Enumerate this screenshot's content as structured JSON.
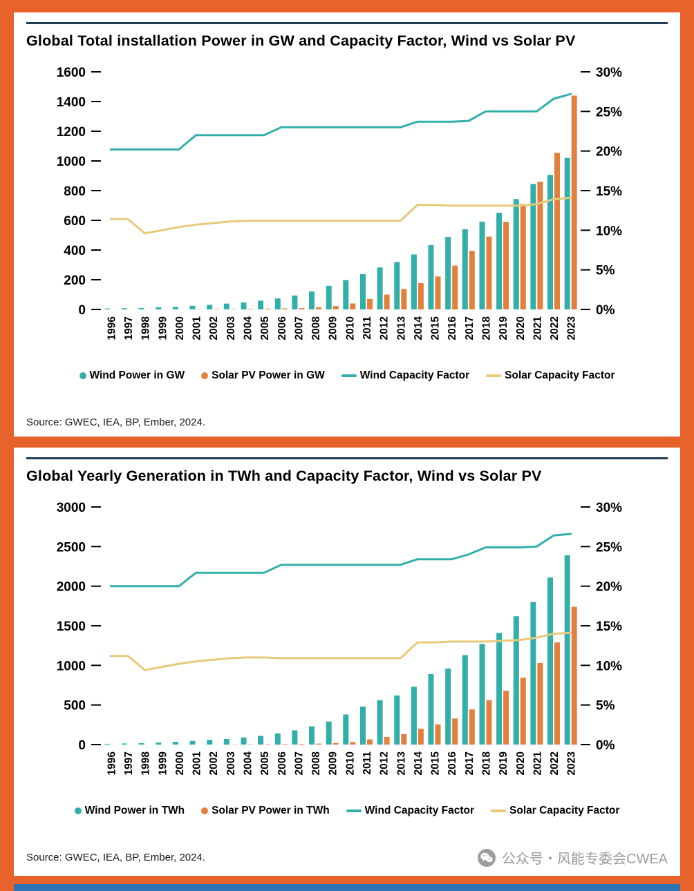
{
  "page": {
    "background_color": "#E8622C",
    "footer_bar_color": "#2E75B6",
    "watermark": {
      "icon": "wechat-icon",
      "text": "公众号・风能专委会CWEA"
    }
  },
  "colors": {
    "wind": "#31AFA8",
    "solar": "#E2803C",
    "solar_cf_line": "#E7C97A",
    "rule": "#1E3A52"
  },
  "panels": [
    {
      "title": "Global Total installation Power in GW and Capacity Factor, Wind vs Solar PV",
      "source": "Source: GWEC, IEA, BP, Ember, 2024.",
      "legend": [
        {
          "label": "Wind Power in GW",
          "color": "#31AFA8",
          "marker": "dot"
        },
        {
          "label": "Solar PV Power in GW",
          "color": "#E2803C",
          "marker": "dot"
        },
        {
          "label": "Wind Capacity Factor",
          "color": "#31AFA8",
          "marker": "line"
        },
        {
          "label": "Solar Capacity Factor",
          "color": "#E7C97A",
          "marker": "line"
        }
      ],
      "chart_data": {
        "type": "bar+line",
        "years": [
          "1996",
          "1997",
          "1998",
          "1999",
          "2000",
          "2001",
          "2002",
          "2003",
          "2004",
          "2005",
          "2006",
          "2007",
          "2008",
          "2009",
          "2010",
          "2011",
          "2012",
          "2013",
          "2014",
          "2015",
          "2016",
          "2017",
          "2018",
          "2019",
          "2020",
          "2021",
          "2022",
          "2023"
        ],
        "left_axis": {
          "label": "GW",
          "min": 0,
          "max": 1600,
          "step": 200
        },
        "right_axis": {
          "label": "Capacity Factor",
          "min": 0,
          "max": 30,
          "step": 5,
          "suffix": "%"
        },
        "grid": false,
        "legend_position": "bottom",
        "series": [
          {
            "name": "Wind Power in GW",
            "type": "bar",
            "axis": "left",
            "color": "#31AFA8",
            "values": [
              6,
              8,
              10,
              14,
              17,
              24,
              31,
              39,
              47,
              59,
              74,
              94,
              121,
              159,
              198,
              238,
              283,
              319,
              370,
              433,
              488,
              540,
              591,
              651,
              743,
              845,
              906,
              1021
            ]
          },
          {
            "name": "Solar PV Power in GW",
            "type": "bar",
            "axis": "left",
            "color": "#E2803C",
            "values": [
              0.3,
              0.4,
              0.6,
              0.8,
              1.2,
              1.5,
              2.1,
              2.6,
              3.7,
              5.1,
              6.7,
              9,
              15,
              23,
              40,
              70,
              100,
              138,
              177,
              222,
              295,
              395,
              490,
              590,
              710,
              860,
              1055,
              1440
            ]
          },
          {
            "name": "Wind Capacity Factor",
            "type": "line",
            "axis": "right",
            "color": "#31AFA8",
            "values": [
              20.2,
              20.2,
              20.2,
              20.2,
              20.2,
              22,
              22,
              22,
              22,
              22,
              23,
              23,
              23,
              23,
              23,
              23,
              23,
              23,
              23.7,
              23.7,
              23.7,
              23.8,
              25,
              25,
              25,
              25,
              26.6,
              27.2
            ]
          },
          {
            "name": "Solar Capacity Factor",
            "type": "line",
            "axis": "right",
            "color": "#E7C97A",
            "values": [
              11.4,
              11.4,
              9.6,
              10,
              10.4,
              10.7,
              10.9,
              11.1,
              11.2,
              11.2,
              11.2,
              11.2,
              11.2,
              11.2,
              11.2,
              11.2,
              11.2,
              11.2,
              13.2,
              13.2,
              13.1,
              13.1,
              13.1,
              13.1,
              13.1,
              13.3,
              13.9,
              14.1
            ]
          }
        ]
      }
    },
    {
      "title": "Global Yearly Generation in TWh and Capacity Factor, Wind vs Solar PV",
      "source": "Source: GWEC, IEA, BP, Ember, 2024.",
      "legend": [
        {
          "label": "Wind Power in TWh",
          "color": "#31AFA8",
          "marker": "dot"
        },
        {
          "label": "Solar PV Power in TWh",
          "color": "#E2803C",
          "marker": "dot"
        },
        {
          "label": "Wind Capacity Factor",
          "color": "#31AFA8",
          "marker": "line"
        },
        {
          "label": "Solar Capacity Factor",
          "color": "#E7C97A",
          "marker": "line"
        }
      ],
      "chart_data": {
        "type": "bar+line",
        "years": [
          "1996",
          "1997",
          "1998",
          "1999",
          "2000",
          "2001",
          "2002",
          "2003",
          "2004",
          "2005",
          "2006",
          "2007",
          "2008",
          "2009",
          "2010",
          "2011",
          "2012",
          "2013",
          "2014",
          "2015",
          "2016",
          "2017",
          "2018",
          "2019",
          "2020",
          "2021",
          "2022",
          "2023"
        ],
        "left_axis": {
          "label": "TWh",
          "min": 0,
          "max": 3000,
          "step": 500
        },
        "right_axis": {
          "label": "Capacity Factor",
          "min": 0,
          "max": 30,
          "step": 5,
          "suffix": "%"
        },
        "grid": false,
        "legend_position": "bottom",
        "series": [
          {
            "name": "Wind Power in TWh",
            "type": "bar",
            "axis": "left",
            "color": "#31AFA8",
            "values": [
              10,
              14,
              18,
              25,
              35,
              45,
              60,
              70,
              90,
              110,
              140,
              180,
              230,
              290,
              380,
              480,
              560,
              620,
              730,
              890,
              960,
              1130,
              1270,
              1410,
              1620,
              1800,
              2110,
              2390
            ]
          },
          {
            "name": "Solar PV Power in TWh",
            "type": "bar",
            "axis": "left",
            "color": "#E2803C",
            "values": [
              0.5,
              0.7,
              0.9,
              1.1,
              1.4,
              1.8,
              2.2,
              2.8,
              3.5,
              4.5,
              6,
              8,
              12,
              20,
              32,
              65,
              97,
              132,
              200,
              255,
              330,
              445,
              560,
              680,
              845,
              1030,
              1290,
              1740
            ]
          },
          {
            "name": "Wind Capacity Factor",
            "type": "line",
            "axis": "right",
            "color": "#31AFA8",
            "values": [
              20,
              20,
              20,
              20,
              20,
              21.7,
              21.7,
              21.7,
              21.7,
              21.7,
              22.7,
              22.7,
              22.7,
              22.7,
              22.7,
              22.7,
              22.7,
              22.7,
              23.4,
              23.4,
              23.4,
              24,
              24.9,
              24.9,
              24.9,
              25,
              26.4,
              26.6
            ]
          },
          {
            "name": "Solar Capacity Factor",
            "type": "line",
            "axis": "right",
            "color": "#E7C97A",
            "values": [
              11.2,
              11.2,
              9.4,
              9.8,
              10.2,
              10.5,
              10.7,
              10.9,
              11,
              11,
              10.9,
              10.9,
              10.9,
              10.9,
              10.9,
              10.9,
              10.9,
              10.9,
              12.9,
              12.9,
              13,
              13,
              13,
              13.1,
              13.2,
              13.5,
              14,
              14.1
            ]
          }
        ]
      }
    }
  ]
}
